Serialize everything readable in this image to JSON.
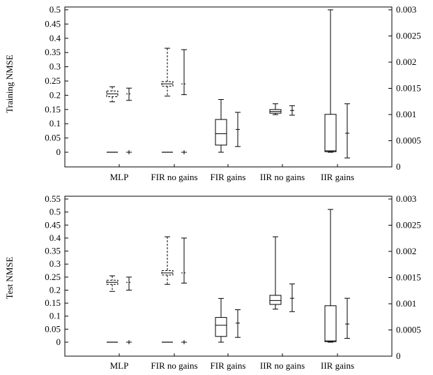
{
  "chart_data": [
    {
      "type": "box",
      "ylabel": "Training NMSE",
      "ylim_left": [
        0,
        0.5
      ],
      "yticks_left": [
        "0.5",
        "0.45",
        "0.4",
        "0.35",
        "0.3",
        "0.25",
        "0.2",
        "0.15",
        "0.1",
        "0.05",
        "0"
      ],
      "ylim_right": [
        0,
        0.003
      ],
      "yticks_right": [
        "0.003",
        "0.0025",
        "0.002",
        "0.0015",
        "0.001",
        "0.0005",
        "0"
      ],
      "categories": [
        "MLP",
        "FIR no gains",
        "FIR gains",
        "IIR no gains",
        "IIR gains"
      ],
      "series": [
        {
          "axis": "left",
          "boxes": [
            {
              "min": 0.177,
              "q1": 0.195,
              "median": 0.205,
              "q3": 0.215,
              "max": 0.23
            },
            {
              "min": 0.197,
              "q1": 0.232,
              "median": 0.24,
              "q3": 0.248,
              "max": 0.365
            },
            {
              "min": 0.0,
              "q1": 0.025,
              "median": 0.065,
              "q3": 0.115,
              "max": 0.185
            },
            {
              "min": 0.132,
              "q1": 0.137,
              "median": 0.143,
              "q3": 0.15,
              "max": 0.17
            },
            {
              "min": 0.0,
              "q1": 0.002,
              "median": 0.005,
              "q3": 0.133,
              "max": 0.5
            }
          ]
        },
        {
          "axis": "right",
          "errorbars": [
            {
              "low": 0.00124,
              "mid": 0.00124,
              "high": 0.00124,
              "shape": "plus"
            },
            {
              "low": 0.00124,
              "mid": 0.00124,
              "high": 0.00124,
              "shape": "plus"
            },
            {
              "low": 0.00012,
              "mid": 0.00048,
              "high": 0.00084,
              "shape": "bar"
            },
            {
              "low": 0.00078,
              "mid": 0.00088,
              "high": 0.00098,
              "shape": "bar"
            },
            {
              "low": -0.00012,
              "mid": 0.0004,
              "high": 0.00102,
              "shape": "bar"
            }
          ],
          "left_lines": [
            0.0,
            0.0
          ]
        }
      ]
    },
    {
      "type": "box",
      "ylabel": "Test NMSE",
      "ylim_left": [
        0,
        0.55
      ],
      "yticks_left": [
        "0.55",
        "0.5",
        "0.45",
        "0.4",
        "0.35",
        "0.3",
        "0.25",
        "0.2",
        "0.15",
        "0.1",
        "0.05",
        "0"
      ],
      "ylim_right": [
        0,
        0.003
      ],
      "yticks_right": [
        "0.003",
        "0.0025",
        "0.002",
        "0.0015",
        "0.001",
        "0.0005",
        "0"
      ],
      "categories": [
        "MLP",
        "FIR no gains",
        "FIR gains",
        "IIR no gains",
        "IIR gains"
      ],
      "series": [
        {
          "axis": "left",
          "boxes": [
            {
              "min": 0.195,
              "q1": 0.222,
              "median": 0.23,
              "q3": 0.238,
              "max": 0.255
            },
            {
              "min": 0.222,
              "q1": 0.258,
              "median": 0.266,
              "q3": 0.275,
              "max": 0.405
            },
            {
              "min": 0.0,
              "q1": 0.022,
              "median": 0.065,
              "q3": 0.095,
              "max": 0.168
            },
            {
              "min": 0.127,
              "q1": 0.145,
              "median": 0.16,
              "q3": 0.18,
              "max": 0.405
            },
            {
              "min": 0.0,
              "q1": 0.002,
              "median": 0.005,
              "q3": 0.14,
              "max": 0.51
            }
          ]
        },
        {
          "axis": "right",
          "errorbars": [
            {
              "low": 0.00124,
              "mid": 0.00124,
              "high": 0.00124,
              "shape": "plus"
            },
            {
              "low": 0.00124,
              "mid": 0.00124,
              "high": 0.00124,
              "shape": "plus"
            },
            {
              "low": 0.0001,
              "mid": 0.0004,
              "high": 0.00068,
              "shape": "bar"
            },
            {
              "low": 0.00064,
              "mid": 0.00092,
              "high": 0.00122,
              "shape": "bar"
            },
            {
              "low": 8e-05,
              "mid": 0.00038,
              "high": 0.00092,
              "shape": "bar"
            }
          ]
        }
      ]
    }
  ]
}
